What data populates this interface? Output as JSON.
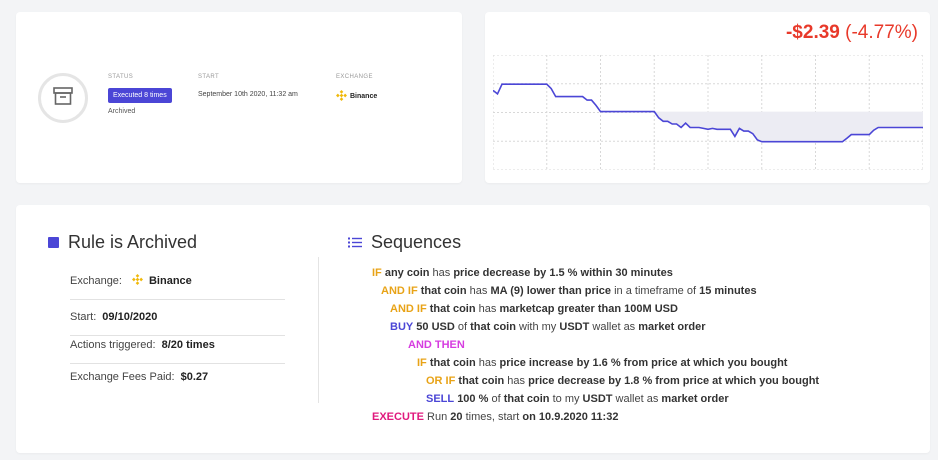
{
  "info_card": {
    "status_label": "STATUS",
    "status_badge": "Executed 8 times",
    "status_sub": "Archived",
    "start_label": "START",
    "start_value": "September 10th 2020, 11:32 am",
    "exchange_label": "EXCHANGE",
    "exchange_value": "Binance",
    "icon": "archive-icon"
  },
  "chart_card": {
    "pnl_amount": "-$2.39",
    "pnl_percent": "(-4.77%)",
    "color_negative": "#e8392a"
  },
  "chart_data": {
    "type": "line",
    "title": "",
    "xlabel": "",
    "ylabel": "",
    "grid": true,
    "line_color": "#4b46d6",
    "values": [
      0.9,
      0.86,
      0.97,
      0.97,
      0.97,
      0.97,
      0.97,
      0.97,
      0.97,
      0.97,
      0.97,
      0.97,
      0.97,
      0.92,
      0.83,
      0.83,
      0.83,
      0.83,
      0.83,
      0.83,
      0.83,
      0.79,
      0.79,
      0.73,
      0.66,
      0.66,
      0.66,
      0.66,
      0.66,
      0.66,
      0.66,
      0.66,
      0.66,
      0.66,
      0.66,
      0.66,
      0.66,
      0.59,
      0.55,
      0.55,
      0.52,
      0.52,
      0.48,
      0.53,
      0.48,
      0.48,
      0.48,
      0.47,
      0.46,
      0.47,
      0.46,
      0.46,
      0.46,
      0.46,
      0.38,
      0.47,
      0.44,
      0.44,
      0.41,
      0.34,
      0.32,
      0.32,
      0.32,
      0.32,
      0.32,
      0.32,
      0.32,
      0.32,
      0.32,
      0.32,
      0.32,
      0.32,
      0.32,
      0.32,
      0.32,
      0.32,
      0.32,
      0.32,
      0.32,
      0.36,
      0.4,
      0.4,
      0.4,
      0.4,
      0.4,
      0.45,
      0.48,
      0.48,
      0.48,
      0.48,
      0.48,
      0.48,
      0.48,
      0.48,
      0.48,
      0.48,
      0.48
    ],
    "baseline_value": 0.66,
    "ylim": [
      0,
      1.3
    ]
  },
  "rule": {
    "title": "Rule is Archived",
    "exchange_label": "Exchange:",
    "exchange_value": "Binance",
    "start_label": "Start:",
    "start_value": "09/10/2020",
    "actions_label": "Actions triggered:",
    "actions_value": "8/20 times",
    "fees_label": "Exchange Fees Paid:",
    "fees_value": "$0.27"
  },
  "sequences": {
    "title": "Sequences",
    "lines": [
      [
        [
          "kw-orange",
          "IF"
        ],
        [
          "plain",
          " "
        ],
        [
          "b",
          "any coin"
        ],
        [
          "plain",
          " has "
        ],
        [
          "b",
          "price decrease by 1.5 % within 30 minutes"
        ]
      ],
      [
        [
          "kw-orange",
          "AND IF"
        ],
        [
          "plain",
          " "
        ],
        [
          "b",
          "that coin"
        ],
        [
          "plain",
          " has "
        ],
        [
          "b",
          "MA (9) lower than price"
        ],
        [
          "plain",
          " in a timeframe of "
        ],
        [
          "b",
          "15 minutes"
        ]
      ],
      [
        [
          "kw-orange",
          "AND IF"
        ],
        [
          "plain",
          " "
        ],
        [
          "b",
          "that coin"
        ],
        [
          "plain",
          " has "
        ],
        [
          "b",
          "marketcap greater than 100M USD"
        ]
      ],
      [
        [
          "kw-blue",
          "BUY"
        ],
        [
          "plain",
          " "
        ],
        [
          "b",
          "50 USD"
        ],
        [
          "plain",
          " of "
        ],
        [
          "b",
          "that coin"
        ],
        [
          "plain",
          " with my "
        ],
        [
          "b",
          "USDT"
        ],
        [
          "plain",
          " wallet as "
        ],
        [
          "b",
          "market order"
        ]
      ],
      [
        [
          "kw-magenta",
          "AND THEN"
        ]
      ],
      [
        [
          "kw-orange",
          "IF"
        ],
        [
          "plain",
          " "
        ],
        [
          "b",
          "that coin"
        ],
        [
          "plain",
          " has "
        ],
        [
          "b",
          "price increase by 1.6 % from price at which you bought"
        ]
      ],
      [
        [
          "kw-orange",
          "OR IF"
        ],
        [
          "plain",
          " "
        ],
        [
          "b",
          "that coin"
        ],
        [
          "plain",
          " has "
        ],
        [
          "b",
          "price decrease by 1.8 % from price at which you bought"
        ]
      ],
      [
        [
          "kw-blue",
          "SELL"
        ],
        [
          "plain",
          " "
        ],
        [
          "b",
          "100 %"
        ],
        [
          "plain",
          " of "
        ],
        [
          "b",
          "that coin"
        ],
        [
          "plain",
          " to my "
        ],
        [
          "b",
          "USDT"
        ],
        [
          "plain",
          " wallet as "
        ],
        [
          "b",
          "market order"
        ]
      ],
      [
        [
          "kw-pink",
          "EXECUTE"
        ],
        [
          "plain",
          " Run "
        ],
        [
          "b",
          "20"
        ],
        [
          "plain",
          " times, start "
        ],
        [
          "b",
          "on 10.9.2020 11:32"
        ]
      ]
    ]
  }
}
